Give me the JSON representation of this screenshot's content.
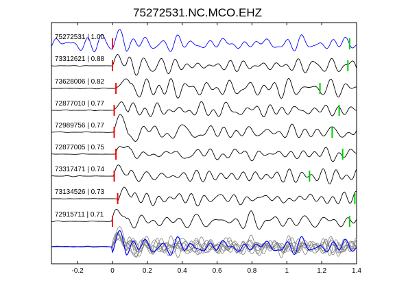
{
  "chart_data": {
    "type": "line",
    "title": "75272531.NC.MCO.EHZ",
    "xlabel": "",
    "ylabel": "",
    "xlim": [
      -0.35,
      1.4
    ],
    "x_ticks": [
      -0.2,
      0,
      0.2,
      0.4,
      0.6,
      0.8,
      1,
      1.2,
      1.4
    ],
    "grid": false,
    "series": [
      {
        "name": "75272531 | 1.00",
        "p_pick": 0.0,
        "s_pick": 1.36,
        "color": "#0000ff"
      },
      {
        "name": "73312621 | 0.88",
        "p_pick": 0.0,
        "s_pick": 1.35,
        "color": "#000000"
      },
      {
        "name": "73628006 | 0.82",
        "p_pick": 0.02,
        "s_pick": 1.19,
        "color": "#000000"
      },
      {
        "name": "72877010 | 0.77",
        "p_pick": 0.01,
        "s_pick": 1.3,
        "color": "#000000"
      },
      {
        "name": "72989756 | 0.77",
        "p_pick": 0.01,
        "s_pick": 1.26,
        "color": "#000000"
      },
      {
        "name": "72877005 | 0.75",
        "p_pick": 0.02,
        "s_pick": 1.32,
        "color": "#000000"
      },
      {
        "name": "73317471 | 0.74",
        "p_pick": 0.01,
        "s_pick": 1.13,
        "color": "#000000"
      },
      {
        "name": "73134526 | 0.73",
        "p_pick": 0.03,
        "s_pick": 1.39,
        "color": "#000000"
      },
      {
        "name": "72915711 | 0.71",
        "p_pick": 0.0,
        "s_pick": 1.36,
        "color": "#000000"
      }
    ],
    "stack_label": "",
    "p_pick_color": "#ff0000",
    "s_pick_color": "#00cc00",
    "overlay_color": "#808080",
    "main_color": "#0000ff"
  }
}
